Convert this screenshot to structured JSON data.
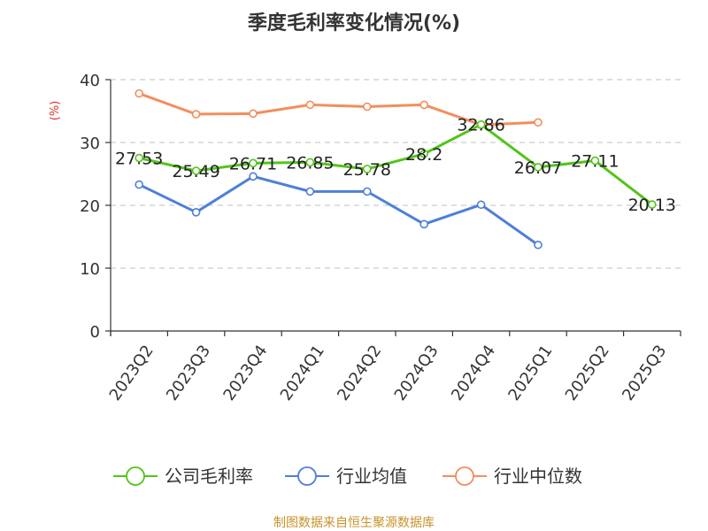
{
  "chart_data": {
    "type": "line",
    "title": "季度毛利率变化情况(%)",
    "ylabel": "(%)",
    "xlabel": "",
    "ylim": [
      0,
      40
    ],
    "yticks": [
      0,
      10,
      20,
      30,
      40
    ],
    "grid": true,
    "legend_position": "bottom",
    "categories": [
      "2023Q2",
      "2023Q3",
      "2023Q4",
      "2024Q1",
      "2024Q2",
      "2024Q3",
      "2024Q4",
      "2025Q1",
      "2025Q2",
      "2025Q3"
    ],
    "series": [
      {
        "name": "公司毛利率",
        "color": "#52c41a",
        "show_labels": true,
        "values": [
          27.53,
          25.49,
          26.71,
          26.85,
          25.78,
          28.2,
          32.86,
          26.07,
          27.11,
          20.13
        ]
      },
      {
        "name": "行业均值",
        "color": "#4e7fd8",
        "show_labels": false,
        "values": [
          23.3,
          18.9,
          24.6,
          22.2,
          22.2,
          17.0,
          20.1,
          13.7,
          null,
          null
        ]
      },
      {
        "name": "行业中位数",
        "color": "#f28e5c",
        "show_labels": false,
        "values": [
          37.8,
          34.5,
          34.6,
          36.0,
          35.7,
          36.0,
          32.8,
          33.2,
          null,
          null
        ]
      }
    ],
    "unit_color": "#e0302a"
  },
  "footer": {
    "source_text": "制图数据来自恒生聚源数据库",
    "source_color": "#c8922a"
  }
}
